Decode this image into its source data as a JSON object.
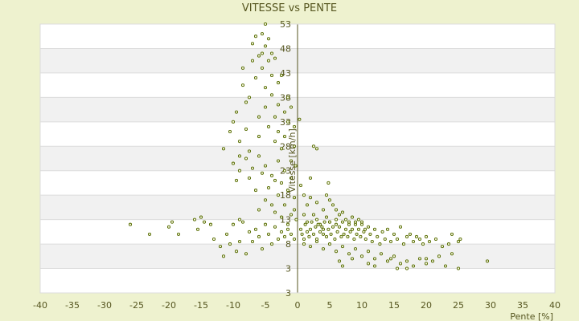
{
  "chart_data": {
    "type": "scatter",
    "title": "VITESSE vs PENTE",
    "xlabel": "Pente [%]",
    "ylabel": "Vitesse [km/h]",
    "xlim": [
      -40,
      40
    ],
    "ylim": [
      -2,
      53
    ],
    "x_ticks": [
      -40,
      -35,
      -30,
      -25,
      -20,
      -15,
      -10,
      -5,
      0,
      5,
      10,
      15,
      20,
      25,
      30,
      35,
      40
    ],
    "y_ticks": [
      3,
      8,
      13,
      18,
      23,
      28,
      33,
      38,
      43,
      48,
      53
    ],
    "grid": true,
    "legend": "none",
    "colors": {
      "background": "#eef2cf",
      "band_light": "#ffffff",
      "band_shade": "#f1f1f1",
      "grid_line": "#dcdcdc",
      "marker_fill": "#f5f5dc",
      "marker_stroke": "#556b00",
      "text": "#55551f"
    },
    "points": [
      [
        -26,
        12
      ],
      [
        -23,
        10
      ],
      [
        -20,
        11.5
      ],
      [
        -19.5,
        12.5
      ],
      [
        -18.5,
        10
      ],
      [
        -16,
        13
      ],
      [
        -15.5,
        11
      ],
      [
        -15,
        13.5
      ],
      [
        -14.5,
        12.5
      ],
      [
        -13.5,
        12
      ],
      [
        -13,
        9
      ],
      [
        -12,
        7.5
      ],
      [
        -11.5,
        5.5
      ],
      [
        -11,
        10
      ],
      [
        -10.5,
        8
      ],
      [
        -10,
        12
      ],
      [
        -9.5,
        6.5
      ],
      [
        -9,
        8.5
      ],
      [
        -9,
        13
      ],
      [
        -8.5,
        12.5
      ],
      [
        -8,
        6
      ],
      [
        -7.5,
        10.5
      ],
      [
        -7,
        8.5
      ],
      [
        -6.5,
        11
      ],
      [
        -6,
        9.5
      ],
      [
        -5.5,
        7
      ],
      [
        -5,
        12
      ],
      [
        -4.5,
        10
      ],
      [
        -4,
        8
      ],
      [
        -3.5,
        11.5
      ],
      [
        -3,
        9
      ],
      [
        -2.5,
        10.5
      ],
      [
        -2,
        9.5
      ],
      [
        -1.5,
        11
      ],
      [
        -1,
        10
      ],
      [
        -0.5,
        9
      ],
      [
        -11.5,
        27.5
      ],
      [
        -10.5,
        31
      ],
      [
        -10,
        33
      ],
      [
        -9.5,
        35
      ],
      [
        -9,
        29
      ],
      [
        -9,
        26
      ],
      [
        -8.5,
        40.5
      ],
      [
        -8.5,
        44
      ],
      [
        -8,
        37
      ],
      [
        -8,
        31.5
      ],
      [
        -7.5,
        38
      ],
      [
        -7.5,
        27
      ],
      [
        -7,
        45.5
      ],
      [
        -7,
        49
      ],
      [
        -6.5,
        50.5
      ],
      [
        -6.5,
        42
      ],
      [
        -6,
        46.5
      ],
      [
        -6,
        34
      ],
      [
        -6,
        30
      ],
      [
        -5.5,
        51
      ],
      [
        -5.5,
        47
      ],
      [
        -5.5,
        44
      ],
      [
        -5,
        48.5
      ],
      [
        -5,
        53
      ],
      [
        -5,
        40
      ],
      [
        -5,
        36
      ],
      [
        -4.5,
        50
      ],
      [
        -4.5,
        45.5
      ],
      [
        -4.5,
        32
      ],
      [
        -4,
        47
      ],
      [
        -4,
        42.5
      ],
      [
        -4,
        38.5
      ],
      [
        -3.5,
        46
      ],
      [
        -3.5,
        34
      ],
      [
        -3.5,
        29
      ],
      [
        -3,
        41
      ],
      [
        -3,
        36.5
      ],
      [
        -3,
        31
      ],
      [
        -2.5,
        42.5
      ],
      [
        -2.5,
        27.5
      ],
      [
        -2,
        35
      ],
      [
        -2,
        30
      ],
      [
        -1.5,
        38
      ],
      [
        -1.5,
        33
      ],
      [
        -1,
        36
      ],
      [
        -1,
        25
      ],
      [
        -0.5,
        28
      ],
      [
        -0.5,
        32
      ],
      [
        -10,
        24.5
      ],
      [
        -9.5,
        21
      ],
      [
        -9,
        23
      ],
      [
        -8,
        25.5
      ],
      [
        -7.5,
        21.5
      ],
      [
        -7,
        23.5
      ],
      [
        -6.5,
        19
      ],
      [
        -6,
        26
      ],
      [
        -6,
        15
      ],
      [
        -5.5,
        22.5
      ],
      [
        -5,
        17
      ],
      [
        -5,
        24
      ],
      [
        -4.5,
        19.5
      ],
      [
        -4,
        16
      ],
      [
        -4,
        22
      ],
      [
        -3.5,
        14.5
      ],
      [
        -3.5,
        21
      ],
      [
        -3,
        18
      ],
      [
        -3,
        25
      ],
      [
        -2.5,
        13.5
      ],
      [
        -2.5,
        20.5
      ],
      [
        -2,
        16
      ],
      [
        -2,
        23
      ],
      [
        -1.5,
        12
      ],
      [
        -1.5,
        19
      ],
      [
        -1,
        14
      ],
      [
        -1,
        21.5
      ],
      [
        -0.5,
        17.5
      ],
      [
        -0.5,
        15
      ],
      [
        -0.3,
        24
      ],
      [
        -0.2,
        13
      ],
      [
        0.3,
        33.5
      ],
      [
        0.5,
        20
      ],
      [
        1,
        14
      ],
      [
        1,
        18
      ],
      [
        1.5,
        12.5
      ],
      [
        1.5,
        16
      ],
      [
        2,
        17.5
      ],
      [
        2,
        21.5
      ],
      [
        2.5,
        14
      ],
      [
        2.5,
        28
      ],
      [
        3,
        13
      ],
      [
        3,
        16.5
      ],
      [
        3,
        27.5
      ],
      [
        3.5,
        12
      ],
      [
        4,
        15
      ],
      [
        4,
        11
      ],
      [
        4.5,
        18
      ],
      [
        4.5,
        13.5
      ],
      [
        4.8,
        20.5
      ],
      [
        5,
        17
      ],
      [
        5,
        12.5
      ],
      [
        5.5,
        16
      ],
      [
        6,
        15
      ],
      [
        6,
        13
      ],
      [
        6.5,
        14
      ],
      [
        7,
        14.5
      ],
      [
        7.5,
        13
      ],
      [
        8,
        12.5
      ],
      [
        8.5,
        13.5
      ],
      [
        9,
        12
      ],
      [
        9.5,
        13
      ],
      [
        10,
        12.5
      ],
      [
        10.5,
        11
      ],
      [
        0.5,
        11
      ],
      [
        0.7,
        10
      ],
      [
        1,
        9
      ],
      [
        1.2,
        12
      ],
      [
        1.5,
        10.5
      ],
      [
        1.8,
        9.5
      ],
      [
        2,
        11
      ],
      [
        2.2,
        12.5
      ],
      [
        2.5,
        10
      ],
      [
        2.8,
        11.5
      ],
      [
        3,
        9
      ],
      [
        3.2,
        12
      ],
      [
        3.5,
        10.5
      ],
      [
        3.8,
        11.5
      ],
      [
        4,
        10
      ],
      [
        4.2,
        12.5
      ],
      [
        4.5,
        9.5
      ],
      [
        4.8,
        11
      ],
      [
        5,
        12.5
      ],
      [
        5.2,
        10
      ],
      [
        5.5,
        11.5
      ],
      [
        5.8,
        9
      ],
      [
        6,
        12
      ],
      [
        6.2,
        10.5
      ],
      [
        6.5,
        11.5
      ],
      [
        6.8,
        9.5
      ],
      [
        7,
        12.5
      ],
      [
        7.2,
        10
      ],
      [
        7.5,
        11
      ],
      [
        7.8,
        9.5
      ],
      [
        8,
        12
      ],
      [
        8.2,
        10.5
      ],
      [
        8.5,
        11
      ],
      [
        8.8,
        9
      ],
      [
        9,
        12.5
      ],
      [
        9.2,
        10
      ],
      [
        9.5,
        11
      ],
      [
        9.8,
        9.5
      ],
      [
        10,
        12
      ],
      [
        10.3,
        10.5
      ],
      [
        10.6,
        9
      ],
      [
        11,
        11.5
      ],
      [
        11.3,
        10
      ],
      [
        11.6,
        8.5
      ],
      [
        12,
        11
      ],
      [
        12.4,
        9.5
      ],
      [
        12.8,
        8
      ],
      [
        13.2,
        10.5
      ],
      [
        13.6,
        9
      ],
      [
        14,
        11
      ],
      [
        14.5,
        8.5
      ],
      [
        15,
        10
      ],
      [
        15.5,
        9
      ],
      [
        16,
        11.5
      ],
      [
        16.5,
        8
      ],
      [
        17,
        9.5
      ],
      [
        17.5,
        10
      ],
      [
        18,
        8.5
      ],
      [
        18.5,
        9.5
      ],
      [
        19,
        9
      ],
      [
        19.5,
        8
      ],
      [
        20,
        9.5
      ],
      [
        20.5,
        8.5
      ],
      [
        21.5,
        9
      ],
      [
        22.5,
        7.5
      ],
      [
        23.5,
        8
      ],
      [
        24,
        10
      ],
      [
        25,
        8.5
      ],
      [
        25.3,
        9
      ],
      [
        1,
        8
      ],
      [
        2,
        7.5
      ],
      [
        3,
        8.5
      ],
      [
        4,
        7
      ],
      [
        5,
        8
      ],
      [
        6,
        6.5
      ],
      [
        7,
        7.5
      ],
      [
        8,
        6
      ],
      [
        9,
        7
      ],
      [
        10,
        5.5
      ],
      [
        11,
        6.5
      ],
      [
        12,
        5
      ],
      [
        13,
        6
      ],
      [
        14,
        4.5
      ],
      [
        15,
        5.5
      ],
      [
        16,
        4
      ],
      [
        17,
        4.5
      ],
      [
        18,
        3.5
      ],
      [
        19,
        5
      ],
      [
        20,
        4
      ],
      [
        21,
        4.5
      ],
      [
        22,
        5.5
      ],
      [
        23,
        3.5
      ],
      [
        24,
        6
      ],
      [
        25,
        3
      ],
      [
        29.5,
        4.5
      ],
      [
        6.5,
        4.5
      ],
      [
        7,
        3.5
      ],
      [
        8.5,
        5
      ],
      [
        11,
        4
      ],
      [
        12,
        3.5
      ],
      [
        14.5,
        5
      ],
      [
        15.5,
        3
      ],
      [
        17,
        3
      ],
      [
        20,
        5
      ]
    ]
  }
}
